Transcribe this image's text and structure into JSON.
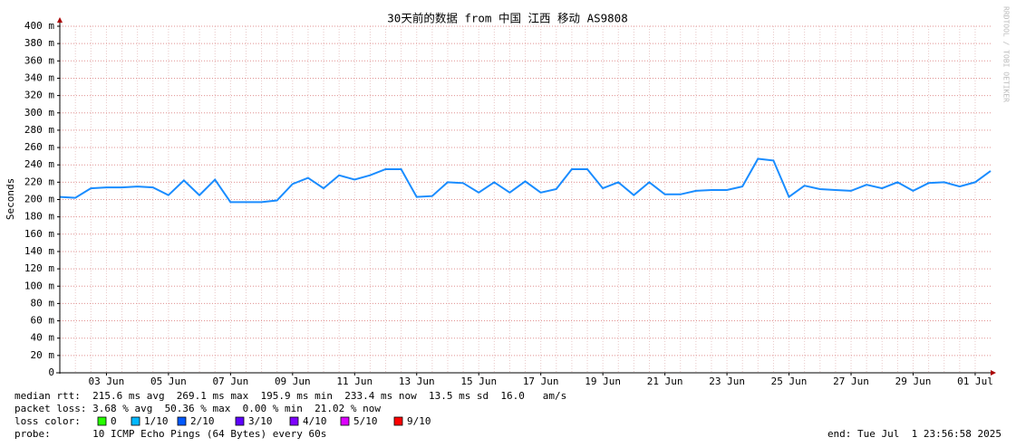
{
  "chart_data": {
    "type": "line",
    "title": "30天前的数据 from 中国 江西 移动 AS9808",
    "y_label": "Seconds",
    "watermark": "RRDTOOL / TOBI OETIKER",
    "x": [
      "2025-06-01T23:56:58",
      "2025-06-02T11:56:58",
      "2025-06-02T23:56:58",
      "2025-06-03T11:56:58",
      "2025-06-03T23:56:58",
      "2025-06-04T11:56:58",
      "2025-06-04T23:56:58",
      "2025-06-05T11:56:58",
      "2025-06-05T23:56:58",
      "2025-06-06T11:56:58",
      "2025-06-06T23:56:58",
      "2025-06-07T11:56:58",
      "2025-06-07T23:56:58",
      "2025-06-08T11:56:58",
      "2025-06-08T23:56:58",
      "2025-06-09T11:56:58",
      "2025-06-09T23:56:58",
      "2025-06-10T11:56:58",
      "2025-06-10T23:56:58",
      "2025-06-11T11:56:58",
      "2025-06-11T23:56:58",
      "2025-06-12T11:56:58",
      "2025-06-12T23:56:58",
      "2025-06-13T11:56:58",
      "2025-06-13T23:56:58",
      "2025-06-14T11:56:58",
      "2025-06-14T23:56:58",
      "2025-06-15T11:56:58",
      "2025-06-15T23:56:58",
      "2025-06-16T11:56:58",
      "2025-06-16T23:56:58",
      "2025-06-17T11:56:58",
      "2025-06-17T23:56:58",
      "2025-06-18T11:56:58",
      "2025-06-18T23:56:58",
      "2025-06-19T11:56:58",
      "2025-06-19T23:56:58",
      "2025-06-20T11:56:58",
      "2025-06-20T23:56:58",
      "2025-06-21T11:56:58",
      "2025-06-21T23:56:58",
      "2025-06-22T11:56:58",
      "2025-06-22T23:56:58",
      "2025-06-23T11:56:58",
      "2025-06-23T23:56:58",
      "2025-06-24T11:56:58",
      "2025-06-24T23:56:58",
      "2025-06-25T11:56:58",
      "2025-06-25T23:56:58",
      "2025-06-26T11:56:58",
      "2025-06-26T23:56:58",
      "2025-06-27T11:56:58",
      "2025-06-27T23:56:58",
      "2025-06-28T11:56:58",
      "2025-06-28T23:56:58",
      "2025-06-29T11:56:58",
      "2025-06-29T23:56:58",
      "2025-06-30T11:56:58",
      "2025-06-30T23:56:58",
      "2025-07-01T11:56:58",
      "2025-07-01T23:56:58"
    ],
    "xlim": [
      "2025-06-01T23:56:58",
      "2025-07-01T23:56:58"
    ],
    "xticks": [
      {
        "value": "2025-06-03T12:00:00",
        "label": "03 Jun"
      },
      {
        "value": "2025-06-05T12:00:00",
        "label": "05 Jun"
      },
      {
        "value": "2025-06-07T12:00:00",
        "label": "07 Jun"
      },
      {
        "value": "2025-06-09T12:00:00",
        "label": "09 Jun"
      },
      {
        "value": "2025-06-11T12:00:00",
        "label": "11 Jun"
      },
      {
        "value": "2025-06-13T12:00:00",
        "label": "13 Jun"
      },
      {
        "value": "2025-06-15T12:00:00",
        "label": "15 Jun"
      },
      {
        "value": "2025-06-17T12:00:00",
        "label": "17 Jun"
      },
      {
        "value": "2025-06-19T12:00:00",
        "label": "19 Jun"
      },
      {
        "value": "2025-06-21T12:00:00",
        "label": "21 Jun"
      },
      {
        "value": "2025-06-23T12:00:00",
        "label": "23 Jun"
      },
      {
        "value": "2025-06-25T12:00:00",
        "label": "25 Jun"
      },
      {
        "value": "2025-06-27T12:00:00",
        "label": "27 Jun"
      },
      {
        "value": "2025-06-29T12:00:00",
        "label": "29 Jun"
      },
      {
        "value": "2025-07-01T12:00:00",
        "label": "01 Jul"
      }
    ],
    "ylim": [
      0,
      0.4
    ],
    "yticks": [
      0,
      {
        "value": 0.02,
        "label": "20 m"
      },
      {
        "value": 0.04,
        "label": "40 m"
      },
      {
        "value": 0.06,
        "label": "60 m"
      },
      {
        "value": 0.08,
        "label": "80 m"
      },
      {
        "value": 0.1,
        "label": "100 m"
      },
      {
        "value": 0.12,
        "label": "120 m"
      },
      {
        "value": 0.14,
        "label": "140 m"
      },
      {
        "value": 0.16,
        "label": "160 m"
      },
      {
        "value": 0.18,
        "label": "180 m"
      },
      {
        "value": 0.2,
        "label": "200 m"
      },
      {
        "value": 0.22,
        "label": "220 m"
      },
      {
        "value": 0.24,
        "label": "240 m"
      },
      {
        "value": 0.26,
        "label": "260 m"
      },
      {
        "value": 0.28,
        "label": "280 m"
      },
      {
        "value": 0.3,
        "label": "300 m"
      },
      {
        "value": 0.32,
        "label": "320 m"
      },
      {
        "value": 0.34,
        "label": "340 m"
      },
      {
        "value": 0.36,
        "label": "360 m"
      },
      {
        "value": 0.38,
        "label": "380 m"
      },
      {
        "value": 0.4,
        "label": "400 m"
      }
    ],
    "grid": true,
    "series": [
      {
        "name": "median rtt",
        "color": "#1a8cff",
        "values": [
          0.203,
          0.202,
          0.213,
          0.214,
          0.214,
          0.215,
          0.214,
          0.205,
          0.222,
          0.205,
          0.223,
          0.197,
          0.197,
          0.197,
          0.199,
          0.218,
          0.225,
          0.213,
          0.228,
          0.223,
          0.228,
          0.235,
          0.235,
          0.203,
          0.204,
          0.22,
          0.219,
          0.208,
          0.22,
          0.208,
          0.221,
          0.208,
          0.212,
          0.235,
          0.235,
          0.213,
          0.22,
          0.205,
          0.22,
          0.206,
          0.206,
          0.21,
          0.211,
          0.211,
          0.215,
          0.247,
          0.245,
          0.203,
          0.216,
          0.212,
          0.211,
          0.21,
          0.217,
          0.213,
          0.22,
          0.21,
          0.219,
          0.22,
          0.215,
          0.22,
          0.233
        ]
      }
    ],
    "legend_lines": {
      "median": "median rtt:  215.6 ms avg  269.1 ms max  195.9 ms min  233.4 ms now  13.5 ms sd  16.0   am/s",
      "loss": "packet loss: 3.68 % avg  50.36 % max  0.00 % min  21.02 % now",
      "loss_color_label": "loss color:",
      "probe": "probe:       10 ICMP Echo Pings (64 Bytes) every 60s",
      "end": "end: Tue Jul  1 23:56:58 2025"
    },
    "loss_colors": [
      {
        "label": "0",
        "color": "#26ff00"
      },
      {
        "label": "1/10",
        "color": "#00b8ff"
      },
      {
        "label": "2/10",
        "color": "#0059ff"
      },
      {
        "label": "3/10",
        "color": "#5e00ff"
      },
      {
        "label": "4/10",
        "color": "#7e00ff"
      },
      {
        "label": "5/10",
        "color": "#dd00ff"
      },
      {
        "label": "9/10",
        "color": "#ff0000"
      }
    ]
  }
}
